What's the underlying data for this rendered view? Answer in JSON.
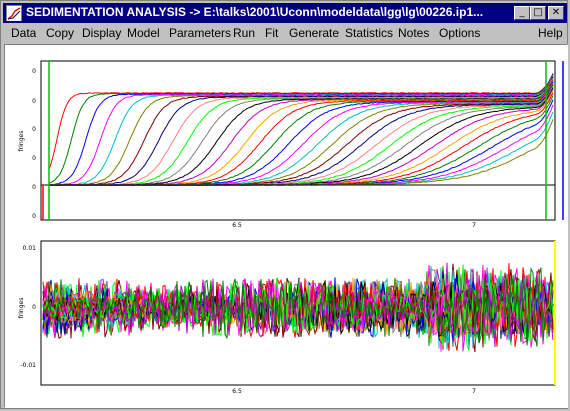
{
  "window": {
    "title": "SEDIMENTATION ANALYSIS -> E:\\talks\\2001\\Uconn\\modeldata\\lgg\\lg\\00226.ip1...",
    "controls": {
      "minimize": "_",
      "maximize": "□",
      "close": "✕"
    }
  },
  "menu": {
    "items": [
      "Data",
      "Copy",
      "Display",
      "Model",
      "Parameters",
      "Run",
      "Fit",
      "Generate",
      "Statistics",
      "Notes",
      "Options"
    ],
    "help": "Help"
  },
  "icons": {
    "app": "sedimentation-app-icon",
    "minimize": "minimize-icon",
    "maximize": "maximize-icon",
    "close": "close-icon"
  },
  "chart_data": [
    {
      "type": "line",
      "ylabel": "fringes",
      "x_ticks": [
        "6.5",
        "7"
      ],
      "y_ticks": [
        "0",
        "0",
        "0",
        "0",
        "0",
        "0"
      ],
      "series_count": 34,
      "description_role": "sedimentation boundary scans"
    },
    {
      "type": "line",
      "ylabel": "fringes",
      "x_ticks": [
        "6.5",
        "7"
      ],
      "y_ticks": [
        "0.01",
        "0",
        "-0.01"
      ],
      "series_count": 20,
      "ylim": [
        -0.015,
        0.013
      ],
      "description_role": "fit residuals"
    }
  ],
  "colors": {
    "palette": [
      "#ff0000",
      "#008000",
      "#0000ff",
      "#ff00ff",
      "#00c0c0",
      "#808000",
      "#800000",
      "#000080",
      "#ff8080",
      "#00ff00",
      "#808080",
      "#000000",
      "#c000c0",
      "#ffa000"
    ],
    "baseline": "#000000",
    "limit_green": "#00c000",
    "limit_red": "#ff0000",
    "limit_blue": "#0000ff"
  }
}
